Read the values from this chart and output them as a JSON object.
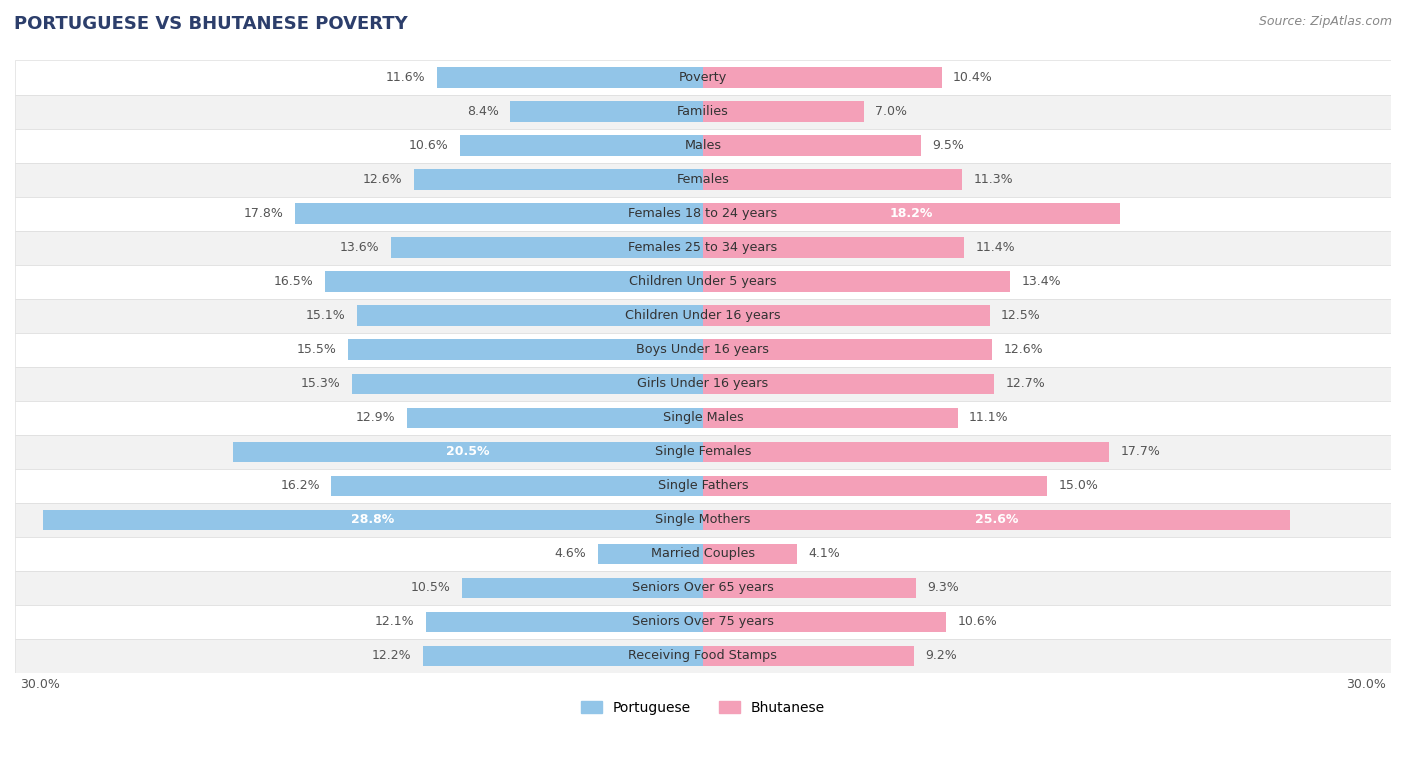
{
  "title": "PORTUGUESE VS BHUTANESE POVERTY",
  "source": "Source: ZipAtlas.com",
  "categories": [
    "Poverty",
    "Families",
    "Males",
    "Females",
    "Females 18 to 24 years",
    "Females 25 to 34 years",
    "Children Under 5 years",
    "Children Under 16 years",
    "Boys Under 16 years",
    "Girls Under 16 years",
    "Single Males",
    "Single Females",
    "Single Fathers",
    "Single Mothers",
    "Married Couples",
    "Seniors Over 65 years",
    "Seniors Over 75 years",
    "Receiving Food Stamps"
  ],
  "portuguese": [
    11.6,
    8.4,
    10.6,
    12.6,
    17.8,
    13.6,
    16.5,
    15.1,
    15.5,
    15.3,
    12.9,
    20.5,
    16.2,
    28.8,
    4.6,
    10.5,
    12.1,
    12.2
  ],
  "bhutanese": [
    10.4,
    7.0,
    9.5,
    11.3,
    18.2,
    11.4,
    13.4,
    12.5,
    12.6,
    12.7,
    11.1,
    17.7,
    15.0,
    25.6,
    4.1,
    9.3,
    10.6,
    9.2
  ],
  "portuguese_color": "#92C5E8",
  "bhutanese_color": "#F4A0B8",
  "highlight_threshold_port": 18.0,
  "highlight_threshold_bhut": 18.0,
  "label_color_default": "#555555",
  "label_color_highlight": "#ffffff",
  "background_color": "#ffffff",
  "row_bg_color": "#ffffff",
  "row_border_color": "#dddddd",
  "alt_row_bg_color": "#f2f2f2",
  "xlim_max": 30.0,
  "bar_height": 0.6,
  "label_fontsize": 9.0,
  "category_fontsize": 9.2,
  "title_fontsize": 13,
  "source_fontsize": 9,
  "title_color": "#2c3e6b",
  "source_color": "#888888"
}
